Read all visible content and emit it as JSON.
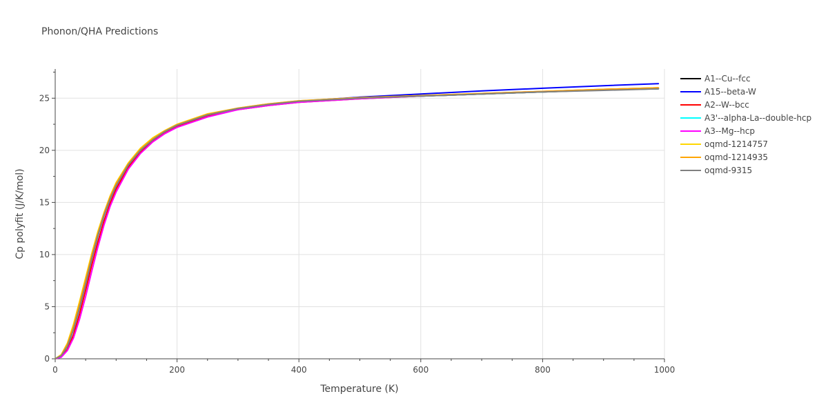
{
  "chart_data": {
    "type": "line",
    "title": "Phonon/QHA Predictions",
    "xlabel": "Temperature (K)",
    "ylabel": "Cp polyfit (J/K/mol)",
    "xlim": [
      0,
      1000
    ],
    "ylim": [
      0,
      27.8
    ],
    "xticks": [
      0,
      200,
      400,
      600,
      800,
      1000
    ],
    "yticks": [
      0,
      5,
      10,
      15,
      20,
      25
    ],
    "grid": true,
    "legend_position": "right",
    "x": [
      0,
      10,
      20,
      30,
      40,
      50,
      60,
      70,
      80,
      90,
      100,
      120,
      140,
      160,
      180,
      200,
      250,
      300,
      350,
      400,
      500,
      600,
      700,
      800,
      900,
      990
    ],
    "series": [
      {
        "name": "A1--Cu--fcc",
        "color": "#000000",
        "values": [
          0,
          0.3,
          1.2,
          2.8,
          4.9,
          7.2,
          9.6,
          11.8,
          13.7,
          15.3,
          16.6,
          18.6,
          20.0,
          21.0,
          21.8,
          22.4,
          23.4,
          24.0,
          24.4,
          24.7,
          25.0,
          25.2,
          25.4,
          25.6,
          25.8,
          25.9
        ]
      },
      {
        "name": "A15--beta-W",
        "color": "#0000ff",
        "values": [
          0,
          0.3,
          1.2,
          2.8,
          4.9,
          7.2,
          9.6,
          11.8,
          13.7,
          15.3,
          16.6,
          18.6,
          20.0,
          21.0,
          21.8,
          22.4,
          23.4,
          24.0,
          24.4,
          24.7,
          25.1,
          25.4,
          25.7,
          25.95,
          26.2,
          26.4
        ]
      },
      {
        "name": "A2--W--bcc",
        "color": "#ff0000",
        "values": [
          0,
          0.2,
          0.9,
          2.3,
          4.3,
          6.6,
          9.0,
          11.2,
          13.2,
          14.9,
          16.3,
          18.4,
          19.8,
          20.9,
          21.7,
          22.3,
          23.3,
          23.9,
          24.3,
          24.6,
          24.95,
          25.2,
          25.4,
          25.6,
          25.8,
          25.95
        ]
      },
      {
        "name": "A3'--alpha-La--double-hcp",
        "color": "#00ffff",
        "values": [
          0,
          0.3,
          1.2,
          2.8,
          4.9,
          7.2,
          9.6,
          11.8,
          13.7,
          15.3,
          16.6,
          18.6,
          20.0,
          21.0,
          21.8,
          22.4,
          23.4,
          24.0,
          24.4,
          24.7,
          25.0,
          25.2,
          25.4,
          25.6,
          25.8,
          25.9
        ]
      },
      {
        "name": "A3--Mg--hcp",
        "color": "#ff00ff",
        "values": [
          0,
          0.15,
          0.8,
          2.0,
          3.8,
          6.0,
          8.4,
          10.7,
          12.8,
          14.6,
          16.0,
          18.2,
          19.7,
          20.8,
          21.6,
          22.2,
          23.2,
          23.9,
          24.3,
          24.6,
          24.95,
          25.2,
          25.45,
          25.65,
          25.85,
          26.0
        ]
      },
      {
        "name": "oqmd-1214757",
        "color": "#ffd700",
        "values": [
          0,
          0.4,
          1.5,
          3.3,
          5.5,
          7.8,
          10.1,
          12.2,
          14.0,
          15.6,
          16.9,
          18.8,
          20.2,
          21.2,
          21.9,
          22.5,
          23.5,
          24.05,
          24.45,
          24.75,
          25.05,
          25.25,
          25.45,
          25.65,
          25.85,
          26.0
        ]
      },
      {
        "name": "oqmd-1214935",
        "color": "#ffa500",
        "values": [
          0,
          0.35,
          1.4,
          3.1,
          5.3,
          7.6,
          9.9,
          12.0,
          13.9,
          15.5,
          16.8,
          18.7,
          20.1,
          21.1,
          21.85,
          22.45,
          23.45,
          24.05,
          24.45,
          24.75,
          25.05,
          25.25,
          25.45,
          25.65,
          25.85,
          26.0
        ]
      },
      {
        "name": "oqmd-9315",
        "color": "#808080",
        "values": [
          0,
          0.3,
          1.2,
          2.8,
          4.9,
          7.2,
          9.6,
          11.8,
          13.7,
          15.3,
          16.6,
          18.6,
          20.0,
          21.0,
          21.8,
          22.4,
          23.4,
          24.0,
          24.4,
          24.7,
          25.0,
          25.2,
          25.4,
          25.6,
          25.75,
          25.9
        ]
      }
    ]
  }
}
